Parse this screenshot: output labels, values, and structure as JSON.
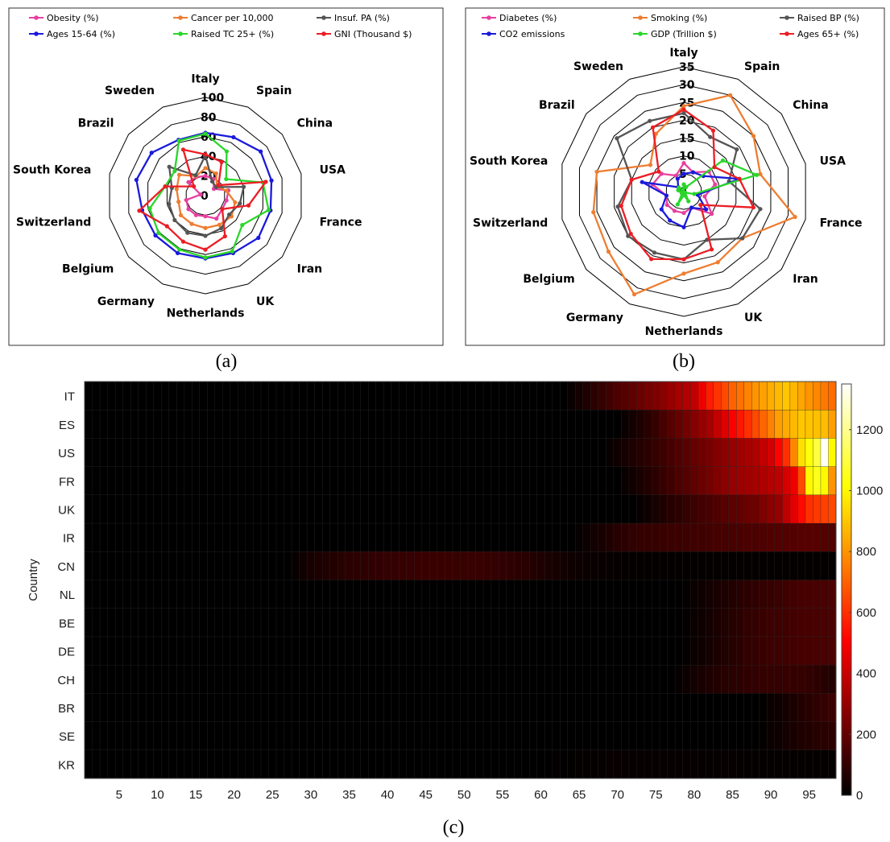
{
  "captions": {
    "a": "(a)",
    "b": "(b)",
    "c": "(c)"
  },
  "chart_data": [
    {
      "panel": "(a)",
      "type": "radar",
      "categories": [
        "Italy",
        "Spain",
        "China",
        "USA",
        "France",
        "Iran",
        "UK",
        "Netherlands",
        "Germany",
        "Belgium",
        "Switzerland",
        "South Korea",
        "Brazil",
        "Sweden"
      ],
      "rlim": [
        0,
        100
      ],
      "rticks": [
        "0",
        "20",
        "40",
        "60",
        "80",
        "100"
      ],
      "legend_position": "top",
      "series": [
        {
          "name": "Obesity (%)",
          "color": "#e83fa0",
          "values": [
            20,
            19,
            11,
            24,
            22,
            22,
            26,
            21,
            22,
            22,
            20,
            5,
            22,
            21
          ]
        },
        {
          "name": "Cancer per 10,000",
          "color": "#ee7d31",
          "values": [
            28,
            25,
            15,
            22,
            31,
            34,
            33,
            33,
            32,
            32,
            28,
            30,
            34,
            22
          ]
        },
        {
          "name": "Insuf. PA (%)",
          "color": "#555555",
          "values": [
            41,
            16,
            14,
            40,
            36,
            31,
            37,
            41,
            42,
            40,
            38,
            35,
            47,
            23
          ]
        },
        {
          "name": "Ages 15-64 (%)",
          "color": "#1a1adb",
          "values": [
            64,
            66,
            72,
            69,
            68,
            69,
            65,
            64,
            65,
            65,
            66,
            72,
            70,
            63
          ]
        },
        {
          "name": "Raised TC 25+ (%)",
          "color": "#2ad62a",
          "values": [
            63,
            50,
            27,
            60,
            66,
            48,
            63,
            63,
            61,
            61,
            58,
            42,
            40,
            62
          ]
        },
        {
          "name": "GNI (Thousand $)",
          "color": "#ec1d24",
          "values": [
            42,
            38,
            17,
            63,
            45,
            22,
            46,
            55,
            52,
            50,
            69,
            42,
            15,
            52
          ]
        }
      ]
    },
    {
      "panel": "(b)",
      "type": "radar",
      "categories": [
        "Italy",
        "Spain",
        "China",
        "USA",
        "France",
        "Iran",
        "UK",
        "Netherlands",
        "Germany",
        "Belgium",
        "Switzerland",
        "South Korea",
        "Brazil",
        "Sweden"
      ],
      "rlim": [
        0,
        35
      ],
      "rticks": [
        "0",
        "5",
        "10",
        "15",
        "20",
        "25",
        "30",
        "35"
      ],
      "legend_position": "top",
      "series": [
        {
          "name": "Diabetes (%)",
          "color": "#e83fa0",
          "values": [
            8,
            6,
            9,
            9,
            6,
            10,
            5,
            6,
            6,
            6,
            5,
            9,
            8,
            5
          ]
        },
        {
          "name": "Smoking (%)",
          "color": "#ee7d31",
          "values": [
            24,
            30,
            25,
            22,
            32,
            21,
            22,
            23,
            32,
            27,
            26,
            25,
            12,
            18
          ]
        },
        {
          "name": "Raised BP (%)",
          "color": "#555555",
          "values": [
            22,
            17,
            19,
            13,
            22,
            21,
            15,
            19,
            19,
            20,
            19,
            15,
            24,
            22
          ]
        },
        {
          "name": "CO2 emissions",
          "color": "#1a1adb",
          "values": [
            5,
            6,
            7,
            16,
            4,
            8,
            5,
            10,
            9,
            8,
            5,
            12,
            2,
            4
          ]
        },
        {
          "name": "GDP (Trillion $)",
          "color": "#2ad62a",
          "values": [
            2,
            1.4,
            14,
            21,
            3,
            0.5,
            3,
            1,
            4,
            0.5,
            0.7,
            1.6,
            1.8,
            0.5
          ]
        },
        {
          "name": "Ages 65+ (%)",
          "color": "#ec1d24",
          "values": [
            23,
            19,
            11,
            16,
            20,
            6,
            18,
            19,
            21,
            19,
            18,
            15,
            9,
            20
          ]
        }
      ]
    },
    {
      "panel": "(c)",
      "type": "heatmap",
      "ylabel": "Country",
      "xlabel": "",
      "rows": [
        "IT",
        "ES",
        "US",
        "FR",
        "UK",
        "IR",
        "CN",
        "NL",
        "BE",
        "DE",
        "CH",
        "BR",
        "SE",
        "KR"
      ],
      "x_range": [
        1,
        98
      ],
      "xticks": [
        "5",
        "10",
        "15",
        "20",
        "25",
        "30",
        "35",
        "40",
        "45",
        "50",
        "55",
        "60",
        "65",
        "70",
        "75",
        "80",
        "85",
        "90",
        "95"
      ],
      "color_range": [
        0,
        1350
      ],
      "colorbar_ticks": [
        "0",
        "200",
        "400",
        "600",
        "800",
        "1000",
        "1200"
      ],
      "colormap": "hot",
      "profiles": [
        {
          "row": "IT",
          "points": [
            [
              1,
              0
            ],
            [
              63,
              0
            ],
            [
              66,
              60
            ],
            [
              70,
              150
            ],
            [
              75,
              250
            ],
            [
              80,
              380
            ],
            [
              82,
              560
            ],
            [
              85,
              700
            ],
            [
              88,
              800
            ],
            [
              92,
              900
            ],
            [
              95,
              800
            ],
            [
              98,
              720
            ]
          ]
        },
        {
          "row": "ES",
          "points": [
            [
              1,
              0
            ],
            [
              70,
              0
            ],
            [
              74,
              80
            ],
            [
              78,
              200
            ],
            [
              82,
              330
            ],
            [
              85,
              500
            ],
            [
              88,
              650
            ],
            [
              91,
              820
            ],
            [
              94,
              900
            ],
            [
              97,
              880
            ],
            [
              98,
              820
            ]
          ]
        },
        {
          "row": "US",
          "points": [
            [
              1,
              0
            ],
            [
              68,
              0
            ],
            [
              72,
              60
            ],
            [
              76,
              120
            ],
            [
              80,
              200
            ],
            [
              84,
              280
            ],
            [
              88,
              350
            ],
            [
              90,
              420
            ],
            [
              92,
              600
            ],
            [
              94,
              950
            ],
            [
              96,
              1100
            ],
            [
              97,
              1340
            ],
            [
              98,
              1000
            ]
          ]
        },
        {
          "row": "FR",
          "points": [
            [
              1,
              0
            ],
            [
              70,
              0
            ],
            [
              74,
              70
            ],
            [
              78,
              150
            ],
            [
              82,
              230
            ],
            [
              85,
              300
            ],
            [
              88,
              330
            ],
            [
              91,
              380
            ],
            [
              93,
              470
            ],
            [
              94,
              650
            ],
            [
              95,
              1000
            ],
            [
              96,
              1050
            ],
            [
              97,
              1000
            ],
            [
              98,
              800
            ]
          ]
        },
        {
          "row": "UK",
          "points": [
            [
              1,
              0
            ],
            [
              72,
              0
            ],
            [
              76,
              60
            ],
            [
              80,
              120
            ],
            [
              84,
              170
            ],
            [
              88,
              220
            ],
            [
              91,
              300
            ],
            [
              93,
              450
            ],
            [
              95,
              600
            ],
            [
              98,
              650
            ]
          ]
        },
        {
          "row": "IR",
          "points": [
            [
              1,
              0
            ],
            [
              64,
              0
            ],
            [
              68,
              50
            ],
            [
              72,
              100
            ],
            [
              78,
              120
            ],
            [
              84,
              140
            ],
            [
              90,
              160
            ],
            [
              95,
              175
            ],
            [
              98,
              160
            ]
          ]
        },
        {
          "row": "CN",
          "points": [
            [
              1,
              0
            ],
            [
              27,
              0
            ],
            [
              30,
              50
            ],
            [
              36,
              90
            ],
            [
              42,
              110
            ],
            [
              48,
              115
            ],
            [
              53,
              110
            ],
            [
              57,
              90
            ],
            [
              60,
              60
            ],
            [
              64,
              30
            ],
            [
              68,
              15
            ],
            [
              72,
              8
            ],
            [
              98,
              8
            ]
          ]
        },
        {
          "row": "NL",
          "points": [
            [
              1,
              0
            ],
            [
              78,
              0
            ],
            [
              82,
              40
            ],
            [
              86,
              80
            ],
            [
              90,
              110
            ],
            [
              94,
              140
            ],
            [
              98,
              150
            ]
          ]
        },
        {
          "row": "BE",
          "points": [
            [
              1,
              0
            ],
            [
              78,
              0
            ],
            [
              82,
              40
            ],
            [
              86,
              90
            ],
            [
              90,
              120
            ],
            [
              94,
              140
            ],
            [
              98,
              150
            ]
          ]
        },
        {
          "row": "DE",
          "points": [
            [
              1,
              0
            ],
            [
              78,
              0
            ],
            [
              82,
              40
            ],
            [
              86,
              90
            ],
            [
              90,
              120
            ],
            [
              94,
              140
            ],
            [
              98,
              150
            ]
          ]
        },
        {
          "row": "CH",
          "points": [
            [
              1,
              0
            ],
            [
              77,
              0
            ],
            [
              80,
              40
            ],
            [
              84,
              80
            ],
            [
              88,
              100
            ],
            [
              92,
              110
            ],
            [
              95,
              100
            ],
            [
              98,
              70
            ]
          ]
        },
        {
          "row": "BR",
          "points": [
            [
              1,
              0
            ],
            [
              88,
              0
            ],
            [
              92,
              40
            ],
            [
              95,
              80
            ],
            [
              98,
              120
            ]
          ]
        },
        {
          "row": "SE",
          "points": [
            [
              1,
              0
            ],
            [
              88,
              0
            ],
            [
              92,
              40
            ],
            [
              95,
              70
            ],
            [
              98,
              90
            ]
          ]
        },
        {
          "row": "KR",
          "points": [
            [
              1,
              0
            ],
            [
              60,
              0
            ],
            [
              70,
              15
            ],
            [
              80,
              12
            ],
            [
              90,
              10
            ],
            [
              98,
              10
            ]
          ]
        }
      ]
    }
  ]
}
